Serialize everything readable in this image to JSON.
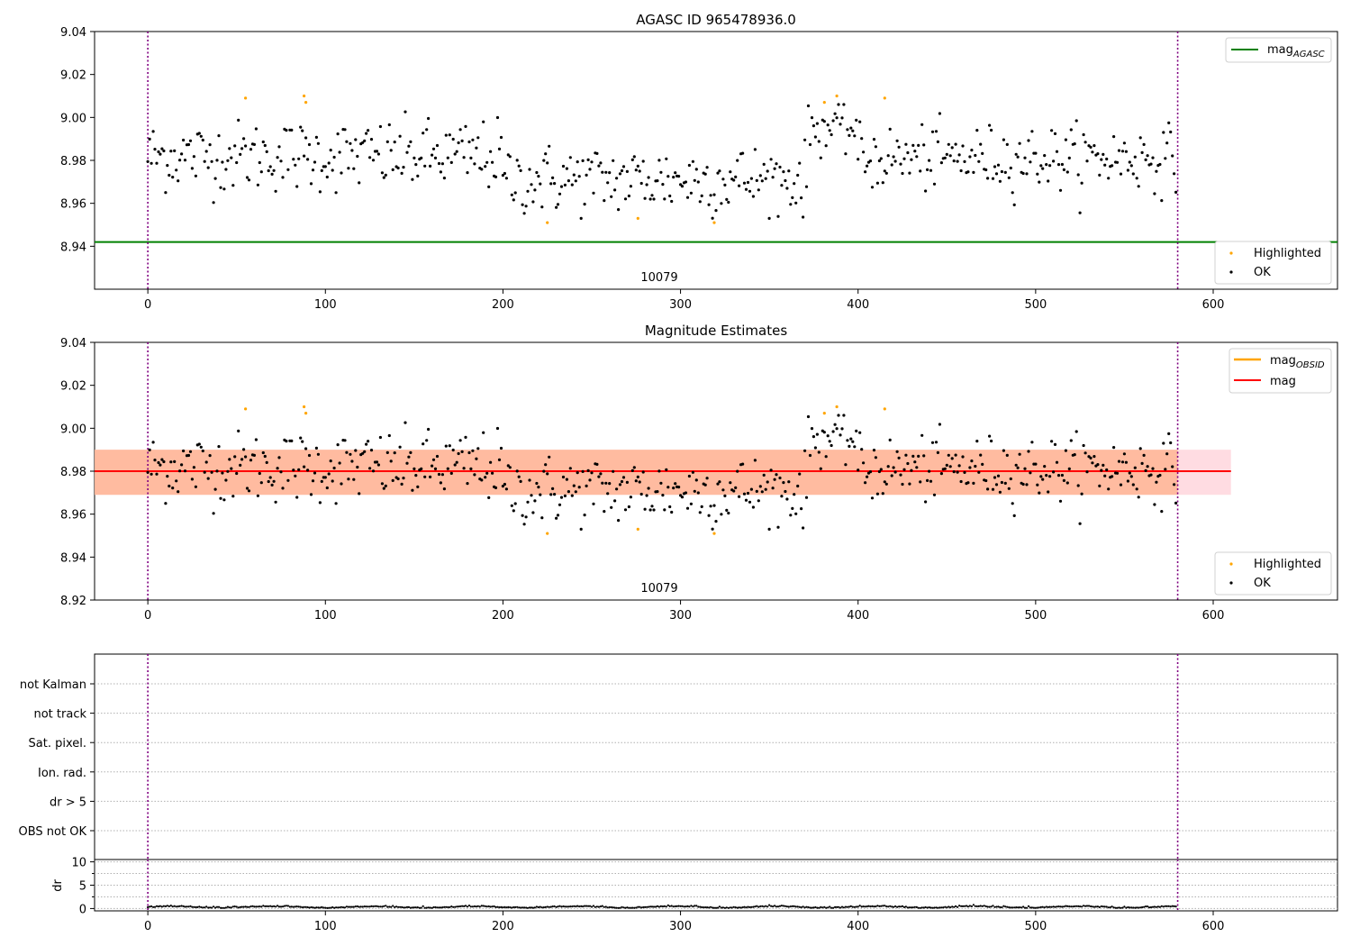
{
  "figure": {
    "title": "AGASC ID 965478936.0",
    "obsid_label": "10079"
  },
  "colors": {
    "ok": "#000000",
    "highlighted": "#ffa500",
    "mag_agasc": "#008000",
    "mag_obsid": "#ffa500",
    "mag": "#ff0000",
    "band_inner": "#ffb08a",
    "band_outer": "#ffd0d8",
    "obsid_boundary": "#800080",
    "grid": "#b0b0b0"
  },
  "chart_data": [
    {
      "type": "scatter",
      "title": "AGASC ID 965478936.0",
      "xlim": [
        -30,
        670
      ],
      "ylim": [
        8.92,
        9.04
      ],
      "xticks": [
        0,
        100,
        200,
        300,
        400,
        500,
        600
      ],
      "yticks": [
        8.94,
        8.96,
        8.98,
        9.0,
        9.02,
        9.04
      ],
      "ytick_labels": [
        "8.94",
        "8.96",
        "8.98",
        "9.00",
        "9.02",
        "9.04"
      ],
      "lines": [
        {
          "name": "mag",
          "sub": "AGASC",
          "y": 8.942,
          "color": "#008000"
        }
      ],
      "obsid_boundaries": [
        0,
        580
      ],
      "annotation": "10079",
      "legend_lines": [
        {
          "base": "mag",
          "sub": "AGASC",
          "color": "#008000"
        }
      ],
      "legend_points": [
        "Highlighted",
        "OK"
      ]
    },
    {
      "type": "scatter",
      "title": "Magnitude Estimates",
      "xlim": [
        -30,
        670
      ],
      "ylim": [
        8.92,
        9.04
      ],
      "xticks": [
        0,
        100,
        200,
        300,
        400,
        500,
        600
      ],
      "yticks": [
        8.92,
        8.94,
        8.96,
        8.98,
        9.0,
        9.02,
        9.04
      ],
      "ytick_labels": [
        "8.92",
        "8.94",
        "8.96",
        "8.98",
        "9.00",
        "9.02",
        "9.04"
      ],
      "lines": [
        {
          "name": "mag",
          "y": 8.98,
          "color": "#ff0000",
          "x_range": [
            -30,
            610
          ]
        }
      ],
      "bands": [
        {
          "y": [
            8.969,
            8.99
          ],
          "x_range": [
            -30,
            610
          ],
          "color": "#ffd0d8"
        },
        {
          "y": [
            8.969,
            8.99
          ],
          "x_range": [
            -30,
            580
          ],
          "color": "#ffb08a"
        }
      ],
      "obsid_boundaries": [
        0,
        580
      ],
      "annotation": "10079",
      "legend_lines": [
        {
          "base": "mag",
          "sub": "OBSID",
          "color": "#ffa500"
        },
        {
          "base": "mag",
          "sub": "",
          "color": "#ff0000"
        }
      ],
      "legend_points": [
        "Highlighted",
        "OK"
      ]
    },
    {
      "type": "scatter",
      "title": "",
      "xlim": [
        -30,
        670
      ],
      "categories": [
        "not Kalman",
        "not track",
        "Sat. pixel.",
        "Ion. rad.",
        "dr > 5",
        "OBS not OK"
      ],
      "flags": [],
      "obsid_boundaries": [
        0,
        580
      ]
    },
    {
      "type": "line",
      "title": "",
      "ylabel": "dr",
      "xlim": [
        -30,
        670
      ],
      "ylim": [
        -0.5,
        10.5
      ],
      "xticks": [
        0,
        100,
        200,
        300,
        400,
        500,
        600
      ],
      "yticks": [
        0,
        5,
        10
      ],
      "ytick_labels": [
        "0",
        "5",
        "10"
      ],
      "obsid_boundaries": [
        0,
        580
      ],
      "dr_summary": {
        "n": 580,
        "mean": 0.25,
        "max": 0.8
      }
    }
  ],
  "mag_series": {
    "n_points": 580,
    "x_range": [
      0,
      580
    ],
    "segments": [
      {
        "x": [
          0,
          200
        ],
        "mean": 8.982,
        "spread": 0.011
      },
      {
        "x": [
          200,
          372
        ],
        "mean": 8.971,
        "spread": 0.011
      },
      {
        "x": [
          372,
          400
        ],
        "mean": 8.995,
        "spread": 0.008
      },
      {
        "x": [
          400,
          580
        ],
        "mean": 8.981,
        "spread": 0.01
      }
    ],
    "highlighted_points": [
      {
        "x": 55,
        "y": 9.009
      },
      {
        "x": 88,
        "y": 9.01
      },
      {
        "x": 89,
        "y": 9.007
      },
      {
        "x": 225,
        "y": 8.951
      },
      {
        "x": 276,
        "y": 8.953
      },
      {
        "x": 319,
        "y": 8.951
      },
      {
        "x": 381,
        "y": 9.007
      },
      {
        "x": 388,
        "y": 9.01
      },
      {
        "x": 415,
        "y": 9.009
      }
    ]
  }
}
